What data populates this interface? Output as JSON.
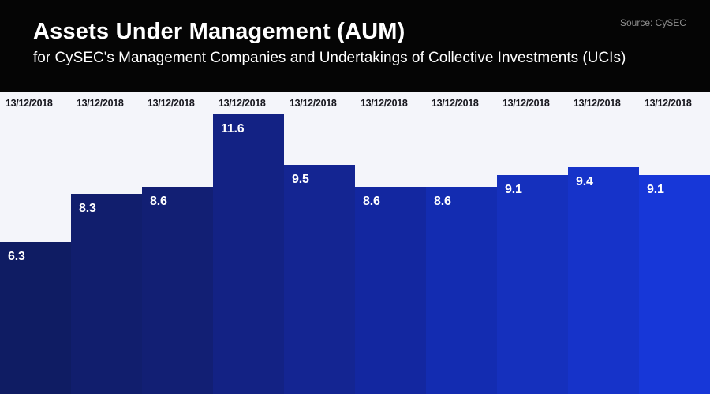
{
  "header": {
    "title": "Assets Under Management (AUM)",
    "subtitle": "for CySEC's Management Companies and Undertakings of Collective Investments (UCIs)",
    "source": "Source: CySEC"
  },
  "chart_data": {
    "type": "bar",
    "title": "Assets Under Management (AUM)",
    "subtitle": "for CySEC's Management Companies and Undertakings of Collective Investments (UCIs)",
    "source": "Source: CySEC",
    "categories": [
      "13/12/2018",
      "13/12/2018",
      "13/12/2018",
      "13/12/2018",
      "13/12/2018",
      "13/12/2018",
      "13/12/2018",
      "13/12/2018",
      "13/12/2018",
      "13/12/2018"
    ],
    "values": [
      6.3,
      8.3,
      8.6,
      11.6,
      9.5,
      8.6,
      8.6,
      9.1,
      9.4,
      9.1
    ],
    "value_labels": [
      "6.3",
      "8.3",
      "8.6",
      "11.6",
      "9.5",
      "8.6",
      "8.6",
      "9.1",
      "9.4",
      "9.1"
    ],
    "xlabel": "",
    "ylabel": "",
    "ylim": [
      0,
      11.6
    ],
    "grid": false,
    "legend": false,
    "bar_colors": [
      "#0f1c63",
      "#111e6d",
      "#121f74",
      "#132284",
      "#142592",
      "#1327a0",
      "#132cb1",
      "#1530bd",
      "#1633c9",
      "#1737d8"
    ],
    "colors": {
      "header_bg": "#050505",
      "chart_bg": "#f4f5fa",
      "title_text": "#ffffff",
      "subtitle_text": "#ffffff",
      "source_text": "#8f8f8f",
      "date_label_text": "#16161d",
      "value_label_text": "#ffffff"
    }
  }
}
